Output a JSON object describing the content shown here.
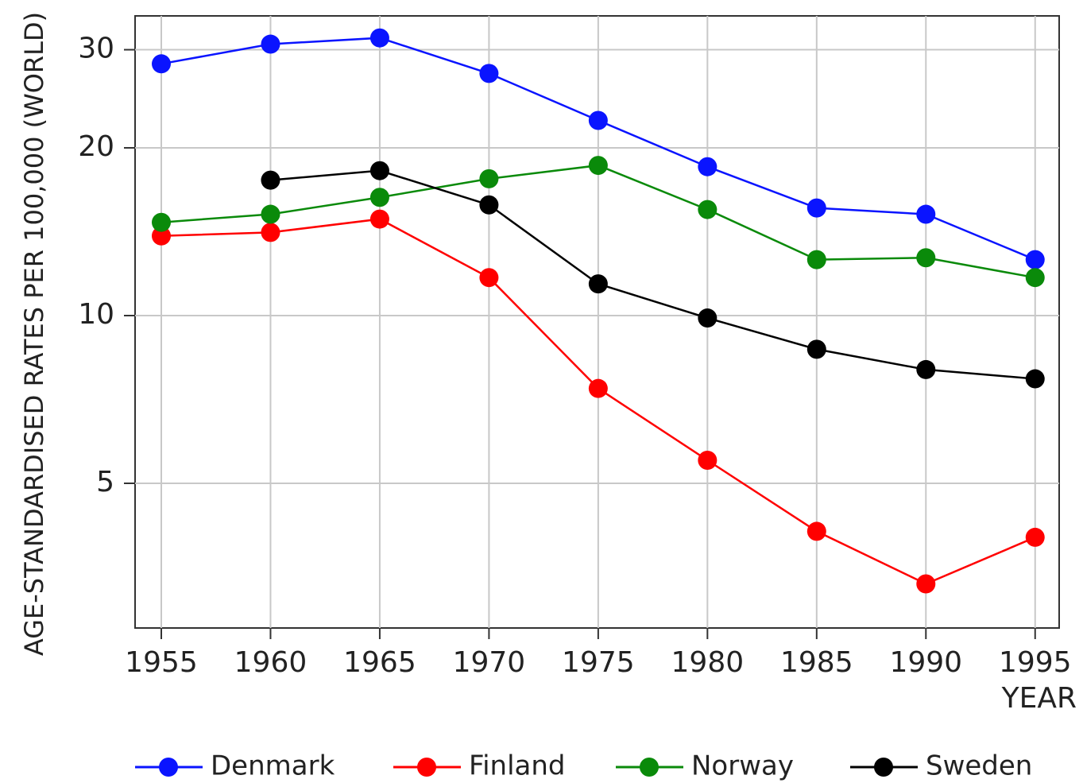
{
  "chart_data": {
    "type": "line",
    "y_label": "AGE-STANDARDISED RATES PER 100,000 (WORLD)",
    "x_label": "YEAR",
    "x": [
      1955,
      1960,
      1965,
      1970,
      1975,
      1980,
      1985,
      1990,
      1995
    ],
    "series": [
      {
        "name": "Denmark",
        "color": "#0a14ff",
        "values": [
          28.3,
          30.7,
          31.5,
          27.2,
          22.4,
          18.5,
          15.6,
          15.2,
          12.6
        ]
      },
      {
        "name": "Finland",
        "color": "#ff0000",
        "values": [
          13.9,
          14.1,
          14.9,
          11.7,
          7.4,
          5.5,
          4.1,
          3.3,
          4.0
        ]
      },
      {
        "name": "Norway",
        "color": "#0a8a0a",
        "values": [
          14.7,
          15.2,
          16.3,
          17.6,
          18.6,
          15.5,
          12.6,
          12.7,
          11.7
        ]
      },
      {
        "name": "Sweden",
        "color": "#000000",
        "values": [
          null,
          17.5,
          18.2,
          15.8,
          11.4,
          9.9,
          8.7,
          8.0,
          7.7
        ]
      }
    ],
    "xlim": [
      1953.8,
      1996.1
    ],
    "xticks": [
      1955,
      1960,
      1965,
      1970,
      1975,
      1980,
      1985,
      1990,
      1995
    ],
    "ylim": [
      2.75,
      34.5
    ],
    "yticks": [
      5,
      10,
      20,
      30
    ],
    "log_y": true,
    "grid": true,
    "legend": "bottom"
  }
}
